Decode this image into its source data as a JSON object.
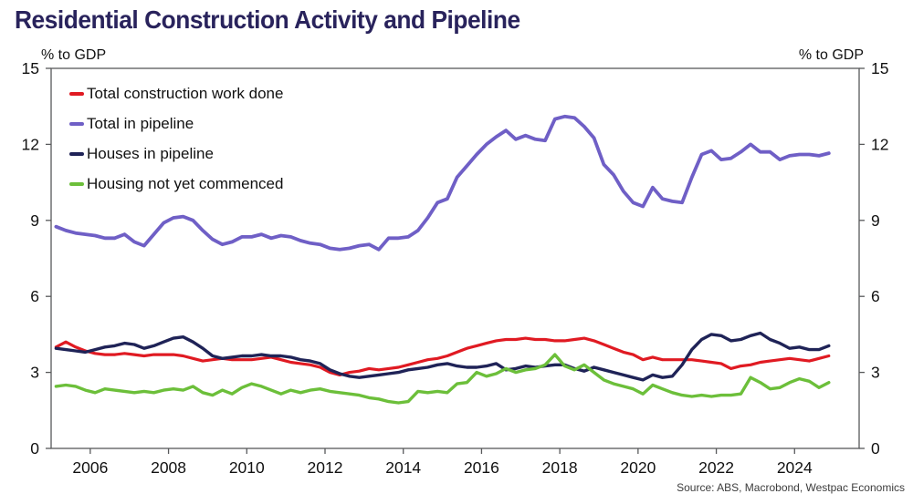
{
  "title": "Residential Construction Activity and Pipeline",
  "left_axis_unit": "% to GDP",
  "right_axis_unit": "% to GDP",
  "source": "Source: ABS, Macrobond, Westpac Economics",
  "colors": {
    "title": "#29235c",
    "axis_frame": "#58595b",
    "tick_text": "#111111",
    "red_series": "#e01a22",
    "purple_series": "#6f5fc6",
    "navy_series": "#1f2357",
    "green_series": "#6cbf3a"
  },
  "chart_data": {
    "type": "line",
    "title": "Residential Construction Activity and Pipeline",
    "xlabel": "",
    "ylabel_left": "% to GDP",
    "ylabel_right": "% to GDP",
    "ylim": [
      0,
      15
    ],
    "y_ticks": [
      0,
      3,
      6,
      9,
      12,
      15
    ],
    "x_ticks": [
      2006,
      2008,
      2010,
      2012,
      2014,
      2016,
      2018,
      2020,
      2022,
      2024
    ],
    "xlim": [
      2005.0,
      2025.65
    ],
    "grid": false,
    "legend_position": "top-left",
    "frequency": "quarterly",
    "x_start": 2005.125,
    "x_step": 0.25,
    "series": [
      {
        "name": "Total construction work done",
        "color": "#e01a22",
        "stroke_width": 3.2,
        "values": [
          4.0,
          4.2,
          4.0,
          3.85,
          3.75,
          3.7,
          3.7,
          3.75,
          3.7,
          3.65,
          3.7,
          3.7,
          3.7,
          3.65,
          3.55,
          3.45,
          3.5,
          3.55,
          3.5,
          3.5,
          3.5,
          3.55,
          3.6,
          3.5,
          3.4,
          3.35,
          3.3,
          3.2,
          3.0,
          2.9,
          3.0,
          3.05,
          3.15,
          3.1,
          3.15,
          3.2,
          3.3,
          3.4,
          3.5,
          3.55,
          3.65,
          3.8,
          3.95,
          4.05,
          4.15,
          4.25,
          4.3,
          4.3,
          4.35,
          4.3,
          4.3,
          4.25,
          4.25,
          4.3,
          4.35,
          4.25,
          4.1,
          3.95,
          3.8,
          3.7,
          3.5,
          3.6,
          3.5,
          3.5,
          3.5,
          3.5,
          3.45,
          3.4,
          3.35,
          3.15,
          3.25,
          3.3,
          3.4,
          3.45,
          3.5,
          3.55,
          3.5,
          3.45,
          3.55,
          3.65
        ]
      },
      {
        "name": "Total in pipeline",
        "color": "#6f5fc6",
        "stroke_width": 3.8,
        "values": [
          8.75,
          8.6,
          8.5,
          8.45,
          8.4,
          8.3,
          8.3,
          8.45,
          8.15,
          8.0,
          8.45,
          8.9,
          9.1,
          9.15,
          9.0,
          8.6,
          8.25,
          8.05,
          8.15,
          8.35,
          8.35,
          8.45,
          8.3,
          8.4,
          8.35,
          8.2,
          8.1,
          8.05,
          7.9,
          7.85,
          7.9,
          8.0,
          8.05,
          7.85,
          8.3,
          8.3,
          8.35,
          8.6,
          9.1,
          9.7,
          9.85,
          10.7,
          11.15,
          11.6,
          12.0,
          12.3,
          12.55,
          12.2,
          12.35,
          12.2,
          12.15,
          13.0,
          13.1,
          13.05,
          12.7,
          12.25,
          11.2,
          10.8,
          10.15,
          9.7,
          9.55,
          10.3,
          9.85,
          9.75,
          9.7,
          10.7,
          11.6,
          11.75,
          11.4,
          11.45,
          11.7,
          12.0,
          11.7,
          11.7,
          11.4,
          11.55,
          11.6,
          11.6,
          11.55,
          11.65
        ]
      },
      {
        "name": "Houses in pipeline",
        "color": "#1f2357",
        "stroke_width": 3.4,
        "values": [
          3.95,
          3.9,
          3.85,
          3.8,
          3.9,
          4.0,
          4.05,
          4.15,
          4.1,
          3.95,
          4.05,
          4.2,
          4.35,
          4.4,
          4.2,
          3.95,
          3.65,
          3.55,
          3.6,
          3.65,
          3.65,
          3.7,
          3.65,
          3.65,
          3.6,
          3.5,
          3.45,
          3.35,
          3.1,
          2.95,
          2.85,
          2.8,
          2.85,
          2.9,
          2.95,
          3.0,
          3.1,
          3.15,
          3.2,
          3.3,
          3.35,
          3.25,
          3.2,
          3.2,
          3.25,
          3.35,
          3.1,
          3.15,
          3.25,
          3.2,
          3.25,
          3.3,
          3.3,
          3.15,
          3.05,
          3.2,
          3.1,
          3.0,
          2.9,
          2.8,
          2.7,
          2.9,
          2.8,
          2.85,
          3.3,
          3.9,
          4.3,
          4.5,
          4.45,
          4.25,
          4.3,
          4.45,
          4.55,
          4.3,
          4.15,
          3.95,
          4.0,
          3.9,
          3.9,
          4.05
        ]
      },
      {
        "name": "Housing not yet commenced",
        "color": "#6cbf3a",
        "stroke_width": 3.4,
        "values": [
          2.45,
          2.5,
          2.45,
          2.3,
          2.2,
          2.35,
          2.3,
          2.25,
          2.2,
          2.25,
          2.2,
          2.3,
          2.35,
          2.3,
          2.45,
          2.2,
          2.1,
          2.3,
          2.15,
          2.4,
          2.55,
          2.45,
          2.3,
          2.15,
          2.3,
          2.2,
          2.3,
          2.35,
          2.25,
          2.2,
          2.15,
          2.1,
          2.0,
          1.95,
          1.85,
          1.8,
          1.85,
          2.25,
          2.2,
          2.25,
          2.2,
          2.55,
          2.6,
          3.0,
          2.85,
          2.95,
          3.15,
          3.0,
          3.1,
          3.15,
          3.3,
          3.7,
          3.25,
          3.1,
          3.3,
          3.0,
          2.7,
          2.55,
          2.45,
          2.35,
          2.15,
          2.5,
          2.35,
          2.2,
          2.1,
          2.05,
          2.1,
          2.05,
          2.1,
          2.1,
          2.15,
          2.8,
          2.6,
          2.35,
          2.4,
          2.6,
          2.75,
          2.65,
          2.4,
          2.6
        ]
      }
    ]
  }
}
